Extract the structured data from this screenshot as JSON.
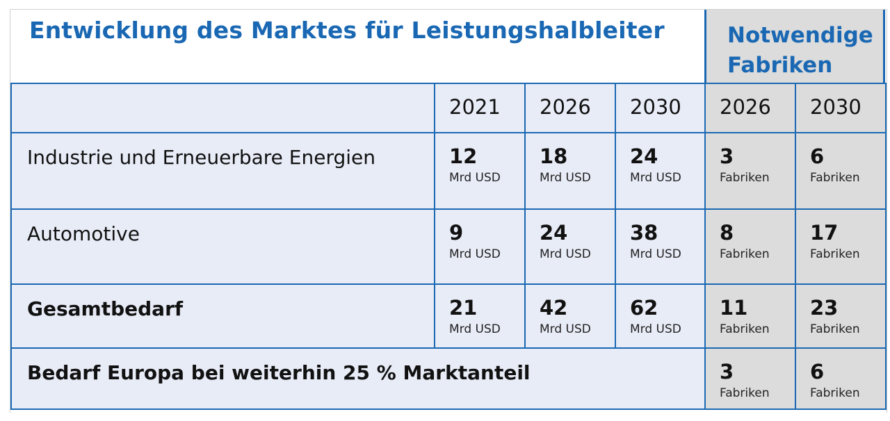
{
  "title": "Entwicklung des Marktes für Leistungshalbleiter",
  "side_title": "Notwendige Fabriken",
  "years": [
    "2021",
    "2026",
    "2030",
    "2026",
    "2030"
  ],
  "rows": [
    {
      "label": "Industrie und Erneuerbare Energien",
      "market": [
        {
          "v": "12",
          "u": "Mrd USD"
        },
        {
          "v": "18",
          "u": "Mrd USD"
        },
        {
          "v": "24",
          "u": "Mrd USD"
        }
      ],
      "fabs": [
        {
          "v": "3",
          "u": "Fabriken"
        },
        {
          "v": "6",
          "u": "Fabriken"
        }
      ]
    },
    {
      "label": "Automotive",
      "market": [
        {
          "v": "9",
          "u": "Mrd USD"
        },
        {
          "v": "24",
          "u": "Mrd USD"
        },
        {
          "v": "38",
          "u": "Mrd USD"
        }
      ],
      "fabs": [
        {
          "v": "8",
          "u": "Fabriken"
        },
        {
          "v": "17",
          "u": "Fabriken"
        }
      ]
    },
    {
      "label": "Gesamtbedarf",
      "market": [
        {
          "v": "21",
          "u": "Mrd USD"
        },
        {
          "v": "42",
          "u": "Mrd USD"
        },
        {
          "v": "62",
          "u": "Mrd USD"
        }
      ],
      "fabs": [
        {
          "v": "11",
          "u": "Fabriken"
        },
        {
          "v": "23",
          "u": "Fabriken"
        }
      ]
    }
  ],
  "europe": {
    "label": "Bedarf Europa bei weiterhin 25 % Marktanteil",
    "fabs": [
      {
        "v": "3",
        "u": "Fabriken"
      },
      {
        "v": "6",
        "u": "Fabriken"
      }
    ]
  }
}
